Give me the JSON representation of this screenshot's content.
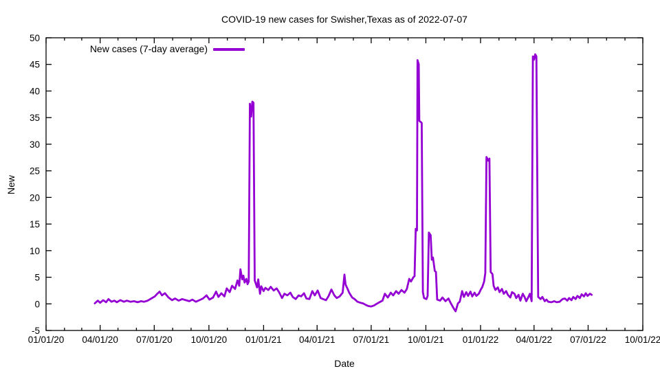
{
  "title": "COVID-19 new cases for Swisher,Texas as of 2022-07-07",
  "xlabel": "Date",
  "ylabel": "New",
  "legend_label": "New cases (7-day average)",
  "colors": {
    "line": "#9400d3",
    "background": "#ffffff",
    "axis": "#000000"
  },
  "chart_data": {
    "type": "line",
    "title": "COVID-19 new cases for Swisher,Texas as of 2022-07-07",
    "xlabel": "Date",
    "ylabel": "New",
    "grid": false,
    "legend_position": "top-left-inside",
    "ylim": [
      -5,
      50
    ],
    "y_ticks": [
      -5,
      0,
      5,
      10,
      15,
      20,
      25,
      30,
      35,
      40,
      45,
      50
    ],
    "x_unit": "days since 2020-01-01",
    "xlim_days": [
      0,
      1004
    ],
    "x_ticks": [
      {
        "day": 0,
        "label": "01/01/20"
      },
      {
        "day": 91,
        "label": "04/01/20"
      },
      {
        "day": 182,
        "label": "07/01/20"
      },
      {
        "day": 274,
        "label": "10/01/20"
      },
      {
        "day": 366,
        "label": "01/01/21"
      },
      {
        "day": 456,
        "label": "04/01/21"
      },
      {
        "day": 547,
        "label": "07/01/21"
      },
      {
        "day": 639,
        "label": "10/01/21"
      },
      {
        "day": 731,
        "label": "01/01/22"
      },
      {
        "day": 821,
        "label": "04/01/22"
      },
      {
        "day": 912,
        "label": "07/01/22"
      },
      {
        "day": 1004,
        "label": "10/01/22"
      }
    ],
    "minor_x_ticks": "monthly",
    "series": [
      {
        "name": "New cases (7-day average)",
        "color": "#9400d3",
        "points": [
          [
            82,
            0.1
          ],
          [
            87,
            0.6
          ],
          [
            91,
            0.2
          ],
          [
            96,
            0.7
          ],
          [
            101,
            0.3
          ],
          [
            105,
            0.9
          ],
          [
            110,
            0.4
          ],
          [
            115,
            0.6
          ],
          [
            119,
            0.3
          ],
          [
            125,
            0.7
          ],
          [
            131,
            0.4
          ],
          [
            136,
            0.6
          ],
          [
            142,
            0.4
          ],
          [
            148,
            0.5
          ],
          [
            154,
            0.3
          ],
          [
            160,
            0.5
          ],
          [
            165,
            0.4
          ],
          [
            171,
            0.6
          ],
          [
            177,
            1.0
          ],
          [
            183,
            1.4
          ],
          [
            187,
            1.9
          ],
          [
            191,
            2.3
          ],
          [
            195,
            1.6
          ],
          [
            200,
            2.0
          ],
          [
            206,
            1.2
          ],
          [
            212,
            0.7
          ],
          [
            217,
            1.0
          ],
          [
            223,
            0.6
          ],
          [
            229,
            0.9
          ],
          [
            235,
            0.7
          ],
          [
            241,
            0.5
          ],
          [
            246,
            0.8
          ],
          [
            252,
            0.4
          ],
          [
            258,
            0.7
          ],
          [
            264,
            1.0
          ],
          [
            270,
            1.6
          ],
          [
            275,
            0.8
          ],
          [
            281,
            1.2
          ],
          [
            286,
            2.3
          ],
          [
            290,
            1.3
          ],
          [
            295,
            2.0
          ],
          [
            300,
            1.4
          ],
          [
            304,
            2.9
          ],
          [
            309,
            2.2
          ],
          [
            313,
            3.4
          ],
          [
            318,
            2.8
          ],
          [
            322,
            4.4
          ],
          [
            325,
            3.4
          ],
          [
            327,
            6.5
          ],
          [
            330,
            4.6
          ],
          [
            332,
            5.3
          ],
          [
            334,
            4.0
          ],
          [
            337,
            4.7
          ],
          [
            339,
            3.7
          ],
          [
            341,
            4.2
          ],
          [
            343,
            37.6
          ],
          [
            345,
            35.2
          ],
          [
            347,
            38.0
          ],
          [
            349,
            37.8
          ],
          [
            351,
            4.4
          ],
          [
            355,
            3.1
          ],
          [
            357,
            4.6
          ],
          [
            360,
            1.9
          ],
          [
            362,
            3.3
          ],
          [
            366,
            2.4
          ],
          [
            369,
            3.0
          ],
          [
            374,
            2.6
          ],
          [
            378,
            3.2
          ],
          [
            383,
            2.5
          ],
          [
            388,
            2.9
          ],
          [
            392,
            2.2
          ],
          [
            397,
            1.1
          ],
          [
            401,
            1.9
          ],
          [
            406,
            1.6
          ],
          [
            411,
            2.1
          ],
          [
            415,
            1.3
          ],
          [
            420,
            0.9
          ],
          [
            425,
            1.6
          ],
          [
            429,
            1.4
          ],
          [
            434,
            2.0
          ],
          [
            438,
            1.0
          ],
          [
            443,
            0.9
          ],
          [
            448,
            2.4
          ],
          [
            452,
            1.6
          ],
          [
            457,
            2.5
          ],
          [
            462,
            1.1
          ],
          [
            466,
            0.9
          ],
          [
            471,
            0.7
          ],
          [
            475,
            1.4
          ],
          [
            480,
            2.7
          ],
          [
            485,
            1.6
          ],
          [
            489,
            1.1
          ],
          [
            494,
            1.4
          ],
          [
            499,
            2.1
          ],
          [
            502,
            5.5
          ],
          [
            504,
            3.6
          ],
          [
            507,
            2.9
          ],
          [
            510,
            2.1
          ],
          [
            515,
            1.2
          ],
          [
            519,
            0.9
          ],
          [
            524,
            0.4
          ],
          [
            529,
            0.2
          ],
          [
            533,
            0.1
          ],
          [
            538,
            -0.2
          ],
          [
            542,
            -0.4
          ],
          [
            547,
            -0.5
          ],
          [
            552,
            -0.3
          ],
          [
            556,
            0.0
          ],
          [
            561,
            0.3
          ],
          [
            566,
            0.6
          ],
          [
            570,
            1.9
          ],
          [
            575,
            1.2
          ],
          [
            580,
            2.1
          ],
          [
            584,
            1.6
          ],
          [
            589,
            2.4
          ],
          [
            593,
            1.9
          ],
          [
            598,
            2.6
          ],
          [
            603,
            2.1
          ],
          [
            607,
            2.8
          ],
          [
            611,
            4.7
          ],
          [
            614,
            4.2
          ],
          [
            618,
            5.0
          ],
          [
            620,
            5.2
          ],
          [
            622,
            14.1
          ],
          [
            624,
            13.8
          ],
          [
            625,
            45.8
          ],
          [
            627,
            45.0
          ],
          [
            628,
            34.4
          ],
          [
            632,
            34.0
          ],
          [
            634,
            2.2
          ],
          [
            636,
            1.1
          ],
          [
            640,
            0.9
          ],
          [
            642,
            1.5
          ],
          [
            644,
            13.4
          ],
          [
            647,
            12.9
          ],
          [
            649,
            8.3
          ],
          [
            651,
            8.7
          ],
          [
            654,
            6.2
          ],
          [
            656,
            6.0
          ],
          [
            658,
            0.8
          ],
          [
            663,
            0.6
          ],
          [
            667,
            1.2
          ],
          [
            672,
            0.5
          ],
          [
            677,
            1.0
          ],
          [
            681,
            0.1
          ],
          [
            686,
            -0.9
          ],
          [
            689,
            -1.4
          ],
          [
            693,
            0.1
          ],
          [
            696,
            0.4
          ],
          [
            700,
            2.4
          ],
          [
            703,
            1.3
          ],
          [
            707,
            2.2
          ],
          [
            710,
            1.5
          ],
          [
            714,
            2.3
          ],
          [
            717,
            1.4
          ],
          [
            721,
            2.1
          ],
          [
            724,
            1.5
          ],
          [
            728,
            1.9
          ],
          [
            731,
            2.6
          ],
          [
            734,
            3.2
          ],
          [
            737,
            4.2
          ],
          [
            739,
            5.8
          ],
          [
            741,
            27.6
          ],
          [
            744,
            26.9
          ],
          [
            746,
            27.3
          ],
          [
            748,
            6.0
          ],
          [
            751,
            5.6
          ],
          [
            753,
            3.4
          ],
          [
            756,
            2.6
          ],
          [
            760,
            3.1
          ],
          [
            763,
            2.2
          ],
          [
            767,
            2.8
          ],
          [
            770,
            1.9
          ],
          [
            774,
            2.4
          ],
          [
            777,
            1.7
          ],
          [
            781,
            1.2
          ],
          [
            784,
            2.2
          ],
          [
            788,
            1.9
          ],
          [
            791,
            1.1
          ],
          [
            795,
            1.7
          ],
          [
            798,
            0.6
          ],
          [
            802,
            1.9
          ],
          [
            805,
            1.3
          ],
          [
            808,
            0.5
          ],
          [
            812,
            1.4
          ],
          [
            814,
            1.9
          ],
          [
            817,
            0.5
          ],
          [
            819,
            46.5
          ],
          [
            821,
            45.9
          ],
          [
            823,
            46.9
          ],
          [
            825,
            46.5
          ],
          [
            828,
            1.3
          ],
          [
            832,
            0.9
          ],
          [
            835,
            1.3
          ],
          [
            839,
            0.5
          ],
          [
            842,
            0.8
          ],
          [
            845,
            0.4
          ],
          [
            850,
            0.3
          ],
          [
            855,
            0.5
          ],
          [
            859,
            0.3
          ],
          [
            864,
            0.4
          ],
          [
            869,
            0.9
          ],
          [
            873,
            1.0
          ],
          [
            877,
            0.6
          ],
          [
            880,
            1.1
          ],
          [
            884,
            0.7
          ],
          [
            887,
            1.3
          ],
          [
            891,
            0.9
          ],
          [
            894,
            1.5
          ],
          [
            898,
            1.1
          ],
          [
            901,
            1.8
          ],
          [
            905,
            1.4
          ],
          [
            908,
            2.0
          ],
          [
            911,
            1.5
          ],
          [
            915,
            1.9
          ],
          [
            918,
            1.7
          ]
        ]
      }
    ]
  }
}
